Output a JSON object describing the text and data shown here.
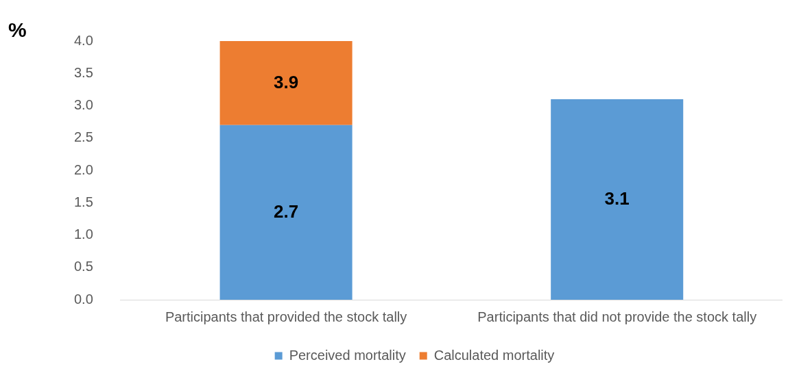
{
  "chart_data": {
    "type": "bar",
    "ylabel": "%",
    "stacked": true,
    "categories": [
      "Participants that provided the stock tally",
      "Participants that did not provide the stock tally"
    ],
    "series": [
      {
        "name": "Perceived mortality",
        "color": "#5b9bd5",
        "values": [
          2.7,
          3.1
        ],
        "value_labels": [
          "2.7",
          "3.1"
        ]
      },
      {
        "name": "Calculated mortality",
        "color": "#ed7d31",
        "values": [
          1.3,
          null
        ]
      }
    ],
    "totals": [
      "3.9",
      null
    ],
    "ylim": [
      0,
      4
    ],
    "yticks": [
      {
        "value": 0,
        "label": "0.0"
      },
      {
        "value": 0.5,
        "label": "0.5"
      },
      {
        "value": 1,
        "label": "1.0"
      },
      {
        "value": 1.5,
        "label": "1.5"
      },
      {
        "value": 2,
        "label": "2.0"
      },
      {
        "value": 2.5,
        "label": "2.5"
      },
      {
        "value": 3,
        "label": "3.0"
      },
      {
        "value": 3.5,
        "label": "3.5"
      },
      {
        "value": 4,
        "label": "4.0"
      }
    ],
    "grid": false,
    "legend": "bottom"
  }
}
